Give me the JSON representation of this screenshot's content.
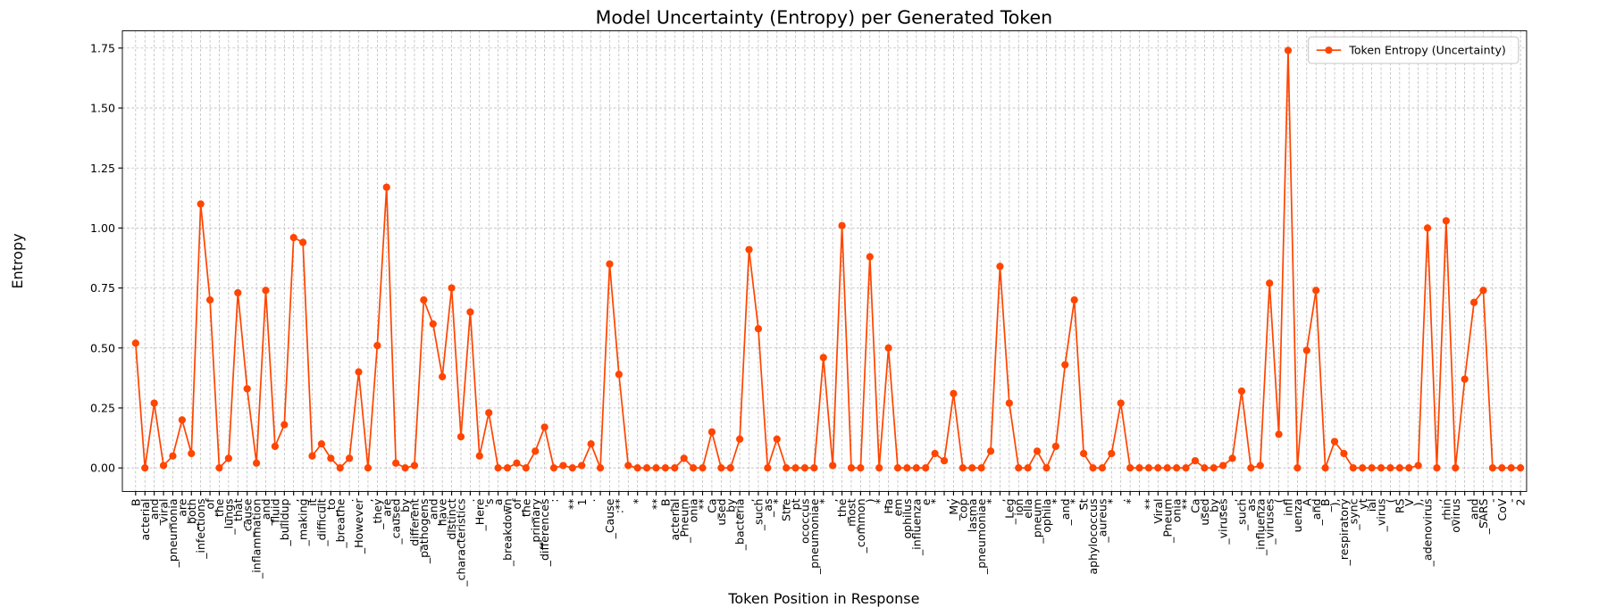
{
  "chart_data": {
    "type": "line",
    "title": "Model Uncertainty (Entropy) per Generated Token",
    "x_label": "Token Position in Response",
    "y_label": "Entropy",
    "categories": [
      "B",
      "acterial",
      "_and",
      "_viral",
      "_pneumonia",
      "_are",
      "_both",
      "_infections",
      "_of",
      "_the",
      "_lungs",
      "_that",
      "_cause",
      "_inflammation",
      "_and",
      "_fluid",
      "_buildup",
      ",",
      "_making",
      "_it",
      "_difficult",
      "_to",
      "_breathe",
      ".",
      "_However",
      ",",
      "_they",
      "_are",
      "_caused",
      "_by",
      "_different",
      "_pathogens",
      "_and",
      "_have",
      "_distinct",
      "_characteristics",
      ".",
      "_Here",
      "'s",
      "_a",
      "_breakdown",
      "_of",
      "_the",
      "_primary",
      "_differences",
      ":",
      null,
      "**",
      "1",
      ".",
      null,
      "_Cause",
      ":**",
      null,
      "*",
      null,
      "**",
      "_B",
      "acterial",
      "_Pneum",
      "onia",
      "**",
      "_Ca",
      "used",
      "_by",
      "_bacteria",
      ",",
      "_such",
      "_as",
      "_*",
      "Stre",
      "pt",
      "ococcus",
      "_pneumoniae",
      "*",
      ",",
      "_the",
      "_most",
      "_common",
      ")",
      "_*",
      "Ha",
      "em",
      "ophilus",
      "_influenza",
      "e",
      "*",
      ",",
      "_My",
      "cop",
      "lasma",
      "_pneumoniae",
      "*",
      ",",
      "_Leg",
      "ion",
      "ella",
      "_pneum",
      "ophila",
      "*",
      "_and",
      "_*",
      "St",
      "aphylococcus",
      "_aureus",
      "*",
      ".",
      "*",
      null,
      "**",
      "Viral",
      "_Pneum",
      "onia",
      "**",
      "_Ca",
      "used",
      "_by",
      "_viruses",
      ",",
      "_such",
      "_as",
      "_influenza",
      "_viruses",
      "(",
      "infl",
      "uenza",
      "_A",
      "_and",
      "_B",
      "),",
      "_respiratory",
      "_sync",
      "yt",
      "ial",
      "_virus",
      "(",
      "RS",
      "V",
      "),",
      "_adenovirus",
      ",",
      "_rhin",
      "ovirus",
      ",",
      "_and",
      "_SARS",
      "-",
      "CoV",
      "-",
      "2"
    ],
    "series": [
      {
        "name": "Token Entropy (Uncertainty)",
        "color": "#ff4500",
        "values": [
          0.52,
          0.0,
          0.27,
          0.01,
          0.05,
          0.2,
          0.06,
          1.1,
          0.7,
          0.0,
          0.04,
          0.73,
          0.33,
          0.02,
          0.74,
          0.09,
          0.18,
          0.96,
          0.94,
          0.05,
          0.1,
          0.04,
          0.0,
          0.04,
          0.4,
          0.0,
          0.51,
          1.17,
          0.02,
          0.0,
          0.01,
          0.7,
          0.6,
          0.38,
          0.75,
          0.13,
          0.65,
          0.05,
          0.23,
          0.0,
          0.0,
          0.02,
          0.0,
          0.07,
          0.17,
          0.0,
          0.01,
          0.0,
          0.01,
          0.1,
          0.0,
          0.85,
          0.39,
          0.01,
          0.0,
          0.0,
          0.0,
          0.0,
          0.0,
          0.04,
          0.0,
          0.0,
          0.15,
          0.0,
          0.0,
          0.12,
          0.91,
          0.58,
          0.0,
          0.12,
          0.0,
          0.0,
          0.0,
          0.0,
          0.46,
          0.01,
          1.01,
          0.0,
          0.0,
          0.88,
          0.0,
          0.5,
          0.0,
          0.0,
          0.0,
          0.0,
          0.06,
          0.03,
          0.31,
          0.0,
          0.0,
          0.0,
          0.07,
          0.84,
          0.27,
          0.0,
          0.0,
          0.07,
          0.0,
          0.09,
          0.43,
          0.7,
          0.06,
          0.0,
          0.0,
          0.06,
          0.27,
          0.0,
          0.0,
          0.0,
          0.0,
          0.0,
          0.0,
          0.0,
          0.03,
          0.0,
          0.0,
          0.01,
          0.04,
          0.32,
          0.0,
          0.01,
          0.77,
          0.14,
          1.74,
          0.0,
          0.49,
          0.74,
          0.0,
          0.11,
          0.06,
          0.0,
          0.0,
          0.0,
          0.0,
          0.0,
          0.0,
          0.0,
          0.01,
          1.0,
          0.0,
          1.03,
          0.0,
          0.37,
          0.69,
          0.74,
          0.0,
          0.0,
          0.0,
          0.0
        ]
      }
    ],
    "ylim": [
      -0.098,
      1.822
    ],
    "yticks": [
      {
        "value": 0,
        "label": "0.00"
      },
      {
        "value": 0.25,
        "label": "0.25"
      },
      {
        "value": 0.5,
        "label": "0.50"
      },
      {
        "value": 0.75,
        "label": "0.75"
      },
      {
        "value": 1,
        "label": "1.00"
      },
      {
        "value": 1.25,
        "label": "1.25"
      },
      {
        "value": 1.5,
        "label": "1.50"
      },
      {
        "value": 1.75,
        "label": "1.75"
      }
    ],
    "grid": true,
    "legend": "upper right"
  }
}
